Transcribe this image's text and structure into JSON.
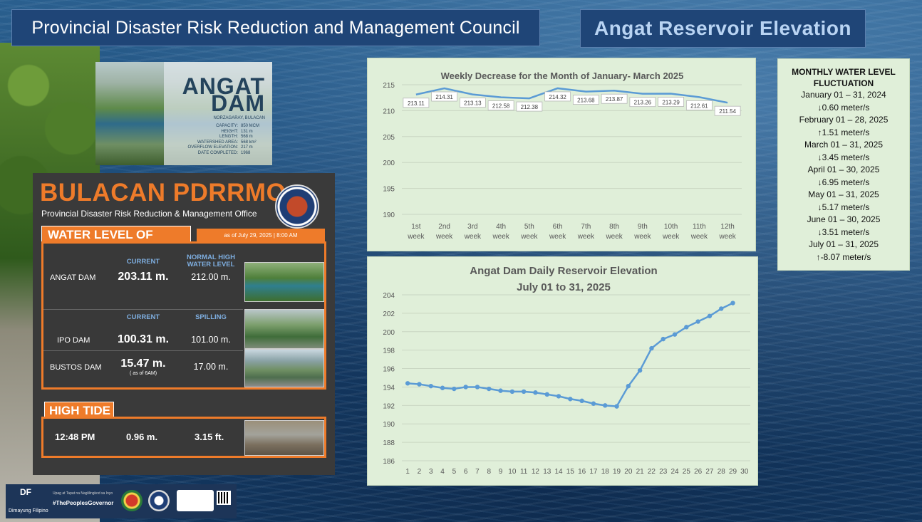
{
  "header": {
    "left_title": "Provincial Disaster Risk Reduction and Management Council",
    "right_title": "Angat Reservoir Elevation"
  },
  "dam_card": {
    "title_line1": "ANGAT",
    "title_line2": "DAM",
    "location": "NORZAGARAY, BULACAN",
    "specs": [
      {
        "label": "CAPACITY:",
        "value": "850 MCM"
      },
      {
        "label": "HEIGHT:",
        "value": "131 m"
      },
      {
        "label": "LENGTH:",
        "value": "568 m"
      },
      {
        "label": "WATERSHED AREA:",
        "value": "568 km²"
      },
      {
        "label": "OVERFLOW ELEVATION:",
        "value": "217 m"
      },
      {
        "label": "DATE COMPLETED:",
        "value": "1968"
      }
    ]
  },
  "pdrrmo": {
    "logo_text": "BULACAN PDRRMO",
    "subtitle": "Provincial Disaster Risk Reduction & Management Office",
    "water_level_title": "WATER LEVEL OF DAMS",
    "as_of": "as of July 29, 2025 | 8:00 AM",
    "angat": {
      "col_current": "CURRENT",
      "col_normal": "NORMAL HIGH WATER LEVEL",
      "name": "ANGAT DAM",
      "current": "203.11 m.",
      "normal": "212.00 m."
    },
    "other_cols": {
      "current": "CURRENT",
      "spilling": "SPILLING"
    },
    "ipo": {
      "name": "IPO DAM",
      "current": "100.31 m.",
      "spilling": "101.00 m."
    },
    "bustos": {
      "name": "BUSTOS DAM",
      "current": "15.47 m.",
      "note": "( as of 6AM)",
      "spilling": "17.00 m."
    },
    "high_tide_title": "HIGH TIDE",
    "tide": {
      "time": "12:48 PM",
      "meters": "0.96 m.",
      "feet": "3.15 ft."
    }
  },
  "footer": {
    "df": "DF",
    "tagline": "Dimayung Filipino",
    "motto": "Upag at Tapat na Naglilingkod sa Inyo",
    "hashtag": "#ThePeoplesGovernor"
  },
  "monthly": {
    "title": "MONTHLY WATER LEVEL FLUCTUATION",
    "rows": [
      {
        "period": "January 01 – 31, 2024",
        "change": "↓0.60 meter/s"
      },
      {
        "period": "February 01 – 28, 2025",
        "change": "↑1.51 meter/s"
      },
      {
        "period": "March 01 – 31, 2025",
        "change": "↓3.45 meter/s"
      },
      {
        "period": "April 01 – 30, 2025",
        "change": "↓6.95  meter/s"
      },
      {
        "period": "May 01 – 31, 2025",
        "change": "↓5.17 meter/s"
      },
      {
        "period": "June 01 – 30, 2025",
        "change": "↓3.51 meter/s"
      },
      {
        "period": "July 01 – 31, 2025",
        "change": "↑-8.07 meter/s"
      }
    ]
  },
  "colors": {
    "line": "#5b9bd5",
    "grid": "#c9d6c2",
    "orange": "#ee7b2a",
    "panel_bg": "#e0efd9"
  },
  "chart_data": [
    {
      "type": "line",
      "title": "Weekly Decrease for the Month of  January- March 2025",
      "categories": [
        "1st week",
        "2nd week",
        "3rd week",
        "4th week",
        "5th week",
        "6th week",
        "7th week",
        "8th week",
        "9th week",
        "10th week",
        "11th week",
        "12th week"
      ],
      "values": [
        213.11,
        214.31,
        213.13,
        212.58,
        212.38,
        214.32,
        213.68,
        213.87,
        213.26,
        213.29,
        212.61,
        211.54
      ],
      "data_labels": [
        "213.11",
        "214.31",
        "213.13",
        "212.58",
        "212.38",
        "214.32",
        "213.68",
        "213.87",
        "213.26",
        "213.29",
        "212.61",
        "211.54"
      ],
      "ylim": [
        190,
        215
      ],
      "yticks": [
        190,
        195,
        200,
        205,
        210,
        215
      ],
      "grid": true
    },
    {
      "type": "line",
      "title": "Angat Dam Daily Reservoir Elevation",
      "subtitle": "July 01 to 31, 2025",
      "categories": [
        1,
        2,
        3,
        4,
        5,
        6,
        7,
        8,
        9,
        10,
        11,
        12,
        13,
        14,
        15,
        16,
        17,
        18,
        19,
        20,
        21,
        22,
        23,
        24,
        25,
        26,
        27,
        28,
        29,
        30
      ],
      "values": [
        194.4,
        194.3,
        194.1,
        193.9,
        193.8,
        194.0,
        194.0,
        193.8,
        193.6,
        193.5,
        193.5,
        193.4,
        193.2,
        193.0,
        192.7,
        192.5,
        192.2,
        192.0,
        191.9,
        194.1,
        195.8,
        198.2,
        199.2,
        199.7,
        200.5,
        201.1,
        201.7,
        202.5,
        203.11,
        null
      ],
      "ylim": [
        186,
        204
      ],
      "yticks": [
        186,
        188,
        190,
        192,
        194,
        196,
        198,
        200,
        202,
        204
      ],
      "grid": true
    }
  ]
}
